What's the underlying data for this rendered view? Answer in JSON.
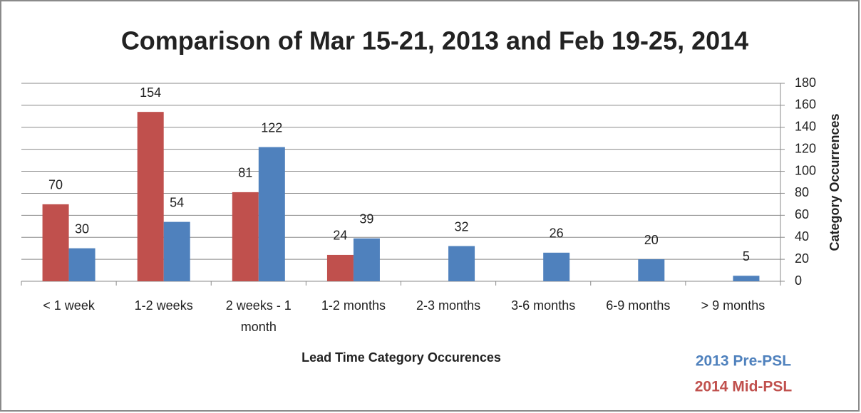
{
  "chart_data": {
    "type": "bar",
    "title": "Comparison of Mar 15-21, 2013 and Feb 19-25, 2014",
    "x_label": "Lead Time Category Occurences",
    "y_label": "Category Occurrences",
    "categories": [
      "< 1 week",
      "1-2 weeks",
      "2 weeks - 1 month",
      "1-2 months",
      "2-3 months",
      "3-6 months",
      "6-9 months",
      "> 9 months"
    ],
    "series": [
      {
        "name": "2014 Mid-PSL",
        "color": "#c0504d",
        "values": [
          70,
          154,
          81,
          24,
          null,
          null,
          null,
          null
        ]
      },
      {
        "name": "2013 Pre-PSL",
        "color": "#4f81bd",
        "values": [
          30,
          54,
          122,
          39,
          32,
          26,
          20,
          5
        ]
      }
    ],
    "ylim": [
      0,
      180
    ],
    "yticks": [
      0,
      20,
      40,
      60,
      80,
      100,
      120,
      140,
      160,
      180
    ],
    "y_axis_side": "right",
    "grid": true
  }
}
